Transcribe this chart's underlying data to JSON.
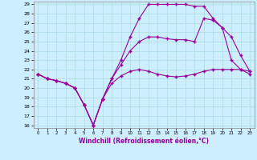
{
  "title": "",
  "xlabel": "Windchill (Refroidissement éolien,°C)",
  "ylabel": "",
  "background_color": "#cceeff",
  "line_color": "#990099",
  "grid_color": "#aadddd",
  "xmin": 0,
  "xmax": 23,
  "ymin": 16,
  "ymax": 29,
  "yticks": [
    16,
    17,
    18,
    19,
    20,
    21,
    22,
    23,
    24,
    25,
    26,
    27,
    28,
    29
  ],
  "xticks": [
    0,
    1,
    2,
    3,
    4,
    5,
    6,
    7,
    8,
    9,
    10,
    11,
    12,
    13,
    14,
    15,
    16,
    17,
    18,
    19,
    20,
    21,
    22,
    23
  ],
  "series": [
    {
      "x": [
        0,
        1,
        2,
        3,
        4,
        5,
        6,
        7,
        8,
        9,
        10,
        11,
        12,
        13,
        14,
        15,
        16,
        17,
        18,
        19,
        20,
        21,
        22,
        23
      ],
      "y": [
        21.5,
        21.0,
        20.8,
        20.5,
        20.0,
        18.2,
        16.0,
        18.8,
        21.0,
        23.0,
        25.5,
        27.5,
        29.0,
        29.0,
        29.0,
        29.0,
        29.0,
        28.8,
        28.8,
        27.5,
        26.5,
        23.0,
        22.0,
        21.5
      ],
      "marker": "+"
    },
    {
      "x": [
        0,
        1,
        2,
        3,
        4,
        5,
        6,
        7,
        8,
        9,
        10,
        11,
        12,
        13,
        14,
        15,
        16,
        17,
        18,
        19,
        20,
        21,
        22,
        23
      ],
      "y": [
        21.5,
        21.0,
        20.8,
        20.5,
        20.0,
        18.2,
        16.0,
        18.8,
        21.0,
        22.5,
        24.0,
        25.0,
        25.5,
        25.5,
        25.3,
        25.2,
        25.2,
        25.0,
        27.5,
        27.3,
        26.5,
        25.5,
        23.5,
        21.8
      ],
      "marker": "+"
    },
    {
      "x": [
        0,
        1,
        2,
        3,
        4,
        5,
        6,
        7,
        8,
        9,
        10,
        11,
        12,
        13,
        14,
        15,
        16,
        17,
        18,
        19,
        20,
        21,
        22,
        23
      ],
      "y": [
        21.5,
        21.0,
        20.8,
        20.5,
        20.0,
        18.2,
        16.0,
        18.8,
        20.5,
        21.3,
        21.8,
        22.0,
        21.8,
        21.5,
        21.3,
        21.2,
        21.3,
        21.5,
        21.8,
        22.0,
        22.0,
        22.0,
        22.0,
        21.8
      ],
      "marker": "+"
    }
  ]
}
